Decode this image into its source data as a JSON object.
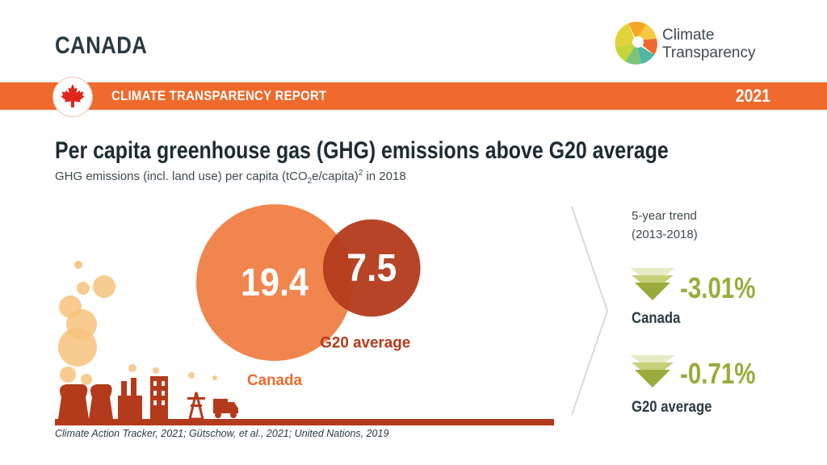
{
  "header": {
    "country": "CANADA",
    "logo_line1": "Climate",
    "logo_line2": "Transparency"
  },
  "banner": {
    "title": "CLIMATE TRANSPARENCY REPORT",
    "year": "2021"
  },
  "headline": "Per capita greenhouse gas (GHG) emissions above G20 average",
  "subtitle": {
    "prefix": "GHG emissions (incl. land use) per capita (tCO",
    "sub": "2",
    "middle": "e/capita)",
    "sup": "2",
    "suffix": " in 2018"
  },
  "trend": {
    "title_line1": "5-year trend",
    "title_line2": "(2013-2018)",
    "items": [
      {
        "value": "-3.01%",
        "label": "Canada"
      },
      {
        "value": "-0.71%",
        "label": "G20 average"
      }
    ]
  },
  "source": "Climate Action Tracker, 2021; Gütschow, et al., 2021; United Nations, 2019",
  "colors": {
    "orange": "#ef6a2c",
    "canada_circle": "#f07b3f",
    "g20_circle": "#b33a1b",
    "trend_green": "#9aab3b",
    "dark_text": "#2b3a42"
  },
  "chart_data": {
    "type": "bubble",
    "categories": [
      "Canada",
      "G20 average"
    ],
    "values": [
      19.4,
      7.5
    ],
    "value_labels": [
      "19.4",
      "7.5"
    ],
    "unit": "tCO2e/capita",
    "year": "2018",
    "colors": [
      "#f07b3f",
      "#b33a1b"
    ]
  }
}
